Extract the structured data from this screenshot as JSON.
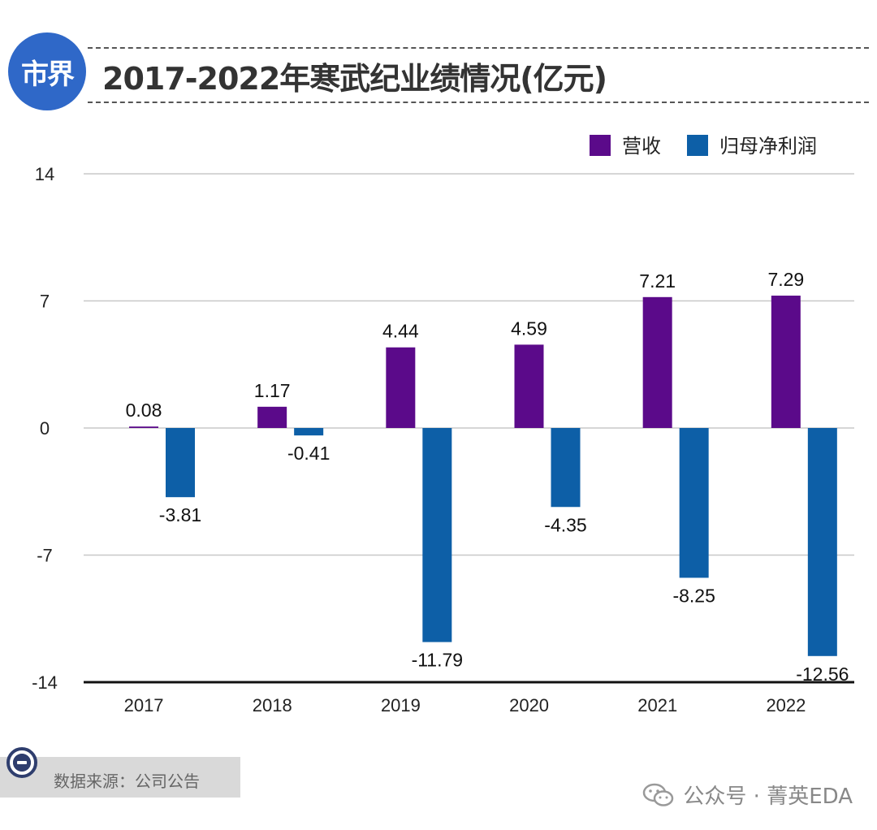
{
  "header": {
    "brand": "市界",
    "title": "2017-2022年寒武纪业绩情况(亿元)"
  },
  "chart_data": {
    "type": "bar",
    "categories": [
      "2017",
      "2018",
      "2019",
      "2020",
      "2021",
      "2022"
    ],
    "series": [
      {
        "name": "营收",
        "color": "#5b0a8a",
        "values": [
          0.08,
          1.17,
          4.44,
          4.59,
          7.21,
          7.29
        ]
      },
      {
        "name": "归母净利润",
        "color": "#0d5fa7",
        "values": [
          -3.81,
          -0.41,
          -11.79,
          -4.35,
          -8.25,
          -12.56
        ]
      }
    ],
    "data_labels": [
      [
        "0.08",
        "1.17",
        "4.44",
        "4.59",
        "7.21",
        "7.29"
      ],
      [
        "-3.81",
        "-0.41",
        "-11.79",
        "-4.35",
        "-8.25",
        "-12.56"
      ]
    ],
    "y_ticks": [
      "14",
      "7",
      "0",
      "-7",
      "-14"
    ],
    "y_tick_values": [
      14,
      7,
      0,
      -7,
      -14
    ],
    "ylim": [
      -14,
      14
    ],
    "grid": true,
    "legend_position": "top-right"
  },
  "footer": {
    "source": "数据来源：公司公告",
    "watermark": "公众号 · 菁英EDA"
  }
}
